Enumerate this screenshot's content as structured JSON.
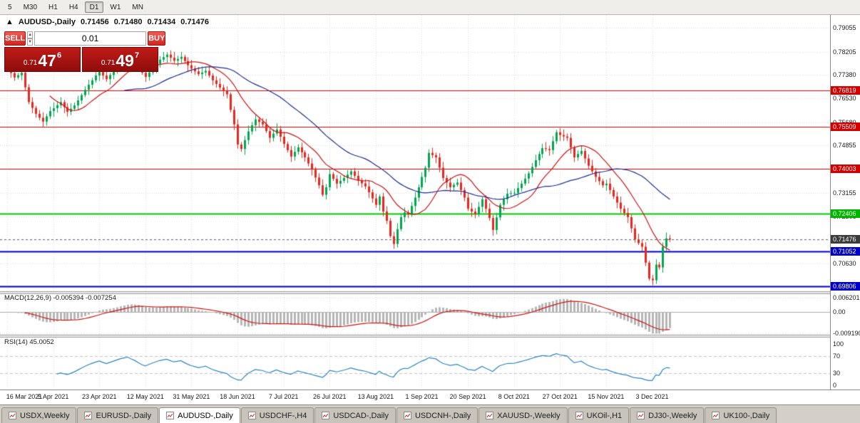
{
  "toolbar": {
    "timeframes": [
      "5",
      "M30",
      "H1",
      "H4",
      "D1",
      "W1",
      "MN"
    ],
    "active_timeframe": "D1"
  },
  "quote_bar": {
    "marker": "▲",
    "symbol": "AUDUSD-,Daily",
    "open": "0.71456",
    "high": "0.71480",
    "low": "0.71434",
    "close": "0.71476"
  },
  "trade_panel": {
    "sell_label": "SELL",
    "buy_label": "BUY",
    "volume": "0.01",
    "sell": {
      "prefix": "0.71",
      "big": "47",
      "sup": "6"
    },
    "buy": {
      "prefix": "0.71",
      "big": "49",
      "sup": "7"
    }
  },
  "price_axis": {
    "badges": [
      {
        "v": 0.76819,
        "label": "0.76819",
        "bg": "#d40000"
      },
      {
        "v": 0.75509,
        "label": "0.75509",
        "bg": "#d40000"
      },
      {
        "v": 0.74003,
        "label": "0.74003",
        "bg": "#d40000"
      },
      {
        "v": 0.72406,
        "label": "0.72406",
        "bg": "#00b400"
      },
      {
        "v": 0.71476,
        "label": "0.71476",
        "bg": "#3c3c3c"
      },
      {
        "v": 0.71052,
        "label": "0.71052",
        "bg": "#0000c8"
      },
      {
        "v": 0.69806,
        "label": "0.69806",
        "bg": "#0000c8"
      }
    ]
  },
  "chart_data": {
    "type": "candlestick",
    "title": "AUDUSD-,Daily",
    "up_color": "#00a651",
    "down_color": "#e8281e",
    "first_open": 0.7772,
    "wick_base": 0.0022,
    "closes": [
      0.776,
      0.7744,
      0.7728,
      0.7736,
      0.7745,
      0.7693,
      0.764,
      0.7619,
      0.7598,
      0.7584,
      0.757,
      0.7589,
      0.7608,
      0.7618,
      0.7629,
      0.764,
      0.7622,
      0.7605,
      0.7616,
      0.7628,
      0.7646,
      0.7665,
      0.7684,
      0.7702,
      0.7718,
      0.7735,
      0.7748,
      0.7735,
      0.7722,
      0.7737,
      0.7752,
      0.777,
      0.7788,
      0.78,
      0.7812,
      0.7798,
      0.7785,
      0.7765,
      0.7745,
      0.773,
      0.7746,
      0.7762,
      0.7777,
      0.7792,
      0.7801,
      0.781,
      0.7799,
      0.7788,
      0.7795,
      0.7802,
      0.7787,
      0.7772,
      0.776,
      0.775,
      0.774,
      0.7746,
      0.7752,
      0.7735,
      0.7718,
      0.7705,
      0.7692,
      0.768,
      0.7668,
      0.7612,
      0.756,
      0.7488,
      0.7472,
      0.7504,
      0.7535,
      0.7557,
      0.7578,
      0.7569,
      0.756,
      0.7536,
      0.7512,
      0.7527,
      0.7542,
      0.7516,
      0.749,
      0.7468,
      0.7445,
      0.7462,
      0.7478,
      0.746,
      0.7442,
      0.742,
      0.7398,
      0.737,
      0.7342,
      0.7308,
      0.7335,
      0.7382,
      0.7365,
      0.7348,
      0.7358,
      0.7368,
      0.738,
      0.7392,
      0.7376,
      0.736,
      0.7349,
      0.7338,
      0.7317,
      0.7295,
      0.7272,
      0.7302,
      0.7248,
      0.7215,
      0.716,
      0.7132,
      0.7185,
      0.7228,
      0.7245,
      0.7238,
      0.7268,
      0.7298,
      0.7335,
      0.7372,
      0.7405,
      0.7458,
      0.745,
      0.7442,
      0.7405,
      0.7368,
      0.7352,
      0.7335,
      0.7344,
      0.7352,
      0.7325,
      0.7298,
      0.7258,
      0.7248,
      0.7238,
      0.7265,
      0.7292,
      0.7258,
      0.7225,
      0.7182,
      0.7227,
      0.7272,
      0.7292,
      0.7312,
      0.7314,
      0.7315,
      0.7332,
      0.7348,
      0.7366,
      0.7385,
      0.7408,
      0.7432,
      0.7454,
      0.7475,
      0.7472,
      0.7468,
      0.75,
      0.7532,
      0.7522,
      0.7517,
      0.7512,
      0.7477,
      0.7442,
      0.7454,
      0.7465,
      0.7438,
      0.7412,
      0.7392,
      0.7372,
      0.7357,
      0.7342,
      0.7348,
      0.7325,
      0.7302,
      0.728,
      0.7258,
      0.7243,
      0.7228,
      0.7188,
      0.7148,
      0.7135,
      0.7122,
      0.7065,
      0.7008,
      0.7002,
      0.7058,
      0.7048,
      0.7122,
      0.7152,
      0.7148
    ],
    "x_labels": [
      {
        "i": 0,
        "label": "16 Mar 2021"
      },
      {
        "i": 13,
        "label": "5 Apr 2021"
      },
      {
        "i": 26,
        "label": "23 Apr 2021"
      },
      {
        "i": 39,
        "label": "12 May 2021"
      },
      {
        "i": 52,
        "label": "31 May 2021"
      },
      {
        "i": 65,
        "label": "18 Jun 2021"
      },
      {
        "i": 78,
        "label": "7 Jul 2021"
      },
      {
        "i": 91,
        "label": "26 Jul 2021"
      },
      {
        "i": 104,
        "label": "13 Aug 2021"
      },
      {
        "i": 117,
        "label": "1 Sep 2021"
      },
      {
        "i": 130,
        "label": "20 Sep 2021"
      },
      {
        "i": 143,
        "label": "8 Oct 2021"
      },
      {
        "i": 156,
        "label": "27 Oct 2021"
      },
      {
        "i": 169,
        "label": "15 Nov 2021"
      },
      {
        "i": 182,
        "label": "3 Dec 2021"
      }
    ],
    "y_ticks": [
      0.79055,
      0.78205,
      0.7738,
      0.7653,
      0.7568,
      0.74855,
      0.74005,
      0.73155,
      0.72306,
      0.71456,
      0.7063,
      0.6978
    ],
    "hlines": [
      {
        "price": 0.76819,
        "color": "#d40000",
        "width": 1
      },
      {
        "price": 0.75509,
        "color": "#d40000",
        "width": 1
      },
      {
        "price": 0.74003,
        "color": "#d40000",
        "width": 1
      },
      {
        "price": 0.72406,
        "color": "#00cc00",
        "width": 2
      },
      {
        "price": 0.71052,
        "color": "#0000cc",
        "width": 2
      },
      {
        "price": 0.69806,
        "color": "#0000cc",
        "width": 2
      }
    ],
    "current_price": 0.71476,
    "moving_averages": [
      {
        "period": 13,
        "color": "#cc1414",
        "name": "fast-ma"
      },
      {
        "period": 34,
        "color": "#1f2e8e",
        "name": "slow-ma"
      }
    ],
    "macd": {
      "fast": 12,
      "slow": 26,
      "signal": 9,
      "label": "MACD(12,26,9) -0.005394 -0.007254",
      "axis": [
        {
          "v": 0.006201,
          "label": "0.006201"
        },
        {
          "v": 0,
          "label": "0.00"
        },
        {
          "v": -0.00919,
          "label": "-0.009190"
        }
      ],
      "hist_color": "#b6b6b6",
      "signal_color": "#cc1414"
    },
    "rsi": {
      "period": 14,
      "label": "RSI(14) 45.0052",
      "axis": [
        {
          "v": 100,
          "label": "100"
        },
        {
          "v": 70,
          "label": "70"
        },
        {
          "v": 30,
          "label": "30"
        },
        {
          "v": 0,
          "label": "0"
        }
      ],
      "levels": [
        70,
        30
      ],
      "color": "#2e86c1"
    }
  },
  "tabs": [
    {
      "label": "USDX,Weekly"
    },
    {
      "label": "EURUSD-,Daily"
    },
    {
      "label": "AUDUSD-,Daily",
      "active": true
    },
    {
      "label": "USDCHF-,H4"
    },
    {
      "label": "USDCAD-,Daily"
    },
    {
      "label": "USDCNH-,Daily"
    },
    {
      "label": "XAUUSD-,Weekly"
    },
    {
      "label": "UKOil-,H1"
    },
    {
      "label": "DJ30-,Weekly"
    },
    {
      "label": "UK100-,Daily"
    }
  ]
}
